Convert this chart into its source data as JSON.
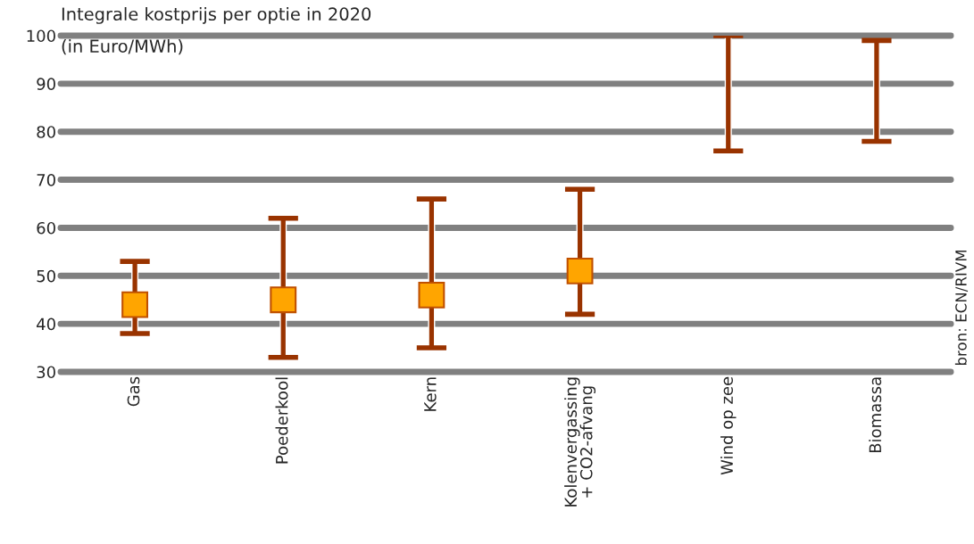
{
  "chart_data": {
    "type": "bar",
    "title": "Integrale kostprijs per optie in 2020",
    "subtitle": "(in Euro/MWh)",
    "categories": [
      "Gas",
      "Poederkool",
      "Kern",
      "Kolenvergassing\n+ CO2-afvang",
      "Wind op zee",
      "Biomassa"
    ],
    "series": [
      {
        "color": "#993300",
        "base": [
          38,
          33,
          35,
          42,
          76,
          78
        ],
        "values": [
          15,
          29,
          31,
          26,
          24,
          21
        ]
      },
      {
        "type": "scatter",
        "color": "#ffa500",
        "marker": "square",
        "values": [
          44,
          45,
          46,
          51,
          null,
          null
        ]
      }
    ],
    "ylim": [
      30,
      100
    ],
    "yticks": [
      30,
      40,
      50,
      60,
      70,
      80,
      90,
      100
    ],
    "grid": "y",
    "legend": false,
    "annotations": [
      "bron: ECN/RIVM"
    ]
  }
}
